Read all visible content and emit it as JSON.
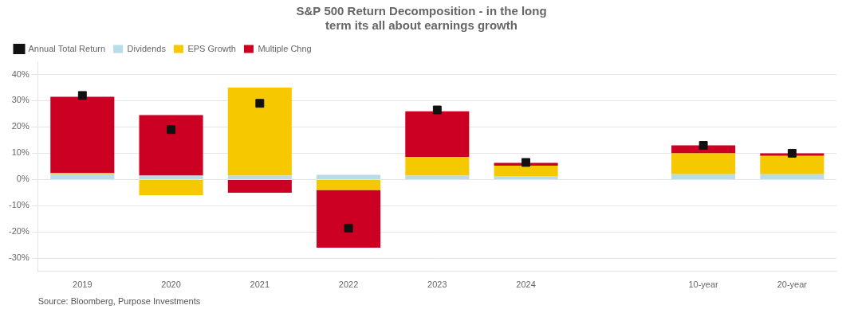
{
  "chart_data": {
    "type": "bar",
    "title": [
      "S&P 500 Return Decomposition - in the long",
      "term its all about earnings growth"
    ],
    "annotations": [
      "Source: Bloomberg, Purpose Investments"
    ],
    "categories": [
      "2019",
      "2020",
      "2021",
      "2022",
      "2023",
      "2024",
      null,
      "10-year",
      "20-year"
    ],
    "series": [
      {
        "name": "Dividends",
        "color": "#b8dce8",
        "type": "bar",
        "values": [
          2.0,
          1.5,
          1.5,
          1.8,
          1.5,
          1.3,
          0.0,
          2.0,
          2.0
        ]
      },
      {
        "name": "EPS Growth",
        "color": "#f5c800",
        "type": "bar",
        "values": [
          0.5,
          -6.0,
          33.5,
          -4.0,
          7.0,
          4.0,
          0.0,
          8.0,
          7.0
        ]
      },
      {
        "name": "Multiple Chng",
        "color": "#cc0022",
        "type": "bar",
        "values": [
          29.0,
          23.0,
          -5.0,
          -22.0,
          17.5,
          1.0,
          0.0,
          3.0,
          1.0
        ]
      },
      {
        "name": "Annual Total Return",
        "color": "#111111",
        "type": "scatter",
        "marker": "square",
        "values": [
          32.0,
          19.0,
          29.0,
          -18.5,
          26.5,
          6.5,
          null,
          13.0,
          10.0
        ]
      }
    ],
    "stacked": true,
    "ylim": [
      -35,
      45
    ],
    "yticks": [
      {
        "value": -30,
        "label": "-30%"
      },
      {
        "value": -20,
        "label": "-20%"
      },
      {
        "value": -10,
        "label": "-10%"
      },
      {
        "value": 0,
        "label": "0%"
      },
      {
        "value": 10,
        "label": "10%"
      },
      {
        "value": 20,
        "label": "20%"
      },
      {
        "value": 30,
        "label": "30%"
      },
      {
        "value": 40,
        "label": "40%"
      }
    ],
    "grid": true,
    "legend": "upper left"
  }
}
